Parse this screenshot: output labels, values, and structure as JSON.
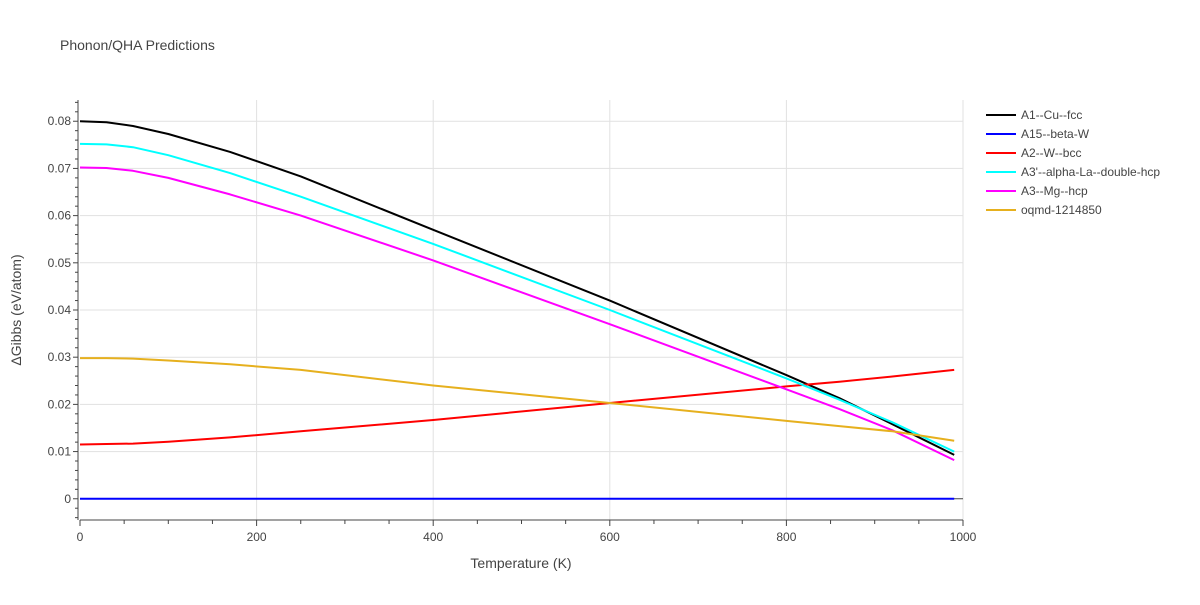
{
  "chart_data": {
    "type": "line",
    "title": "Phonon/QHA Predictions",
    "xlabel": "Temperature (K)",
    "ylabel": "ΔGibbs (eV/atom)",
    "xlim": [
      0,
      1000
    ],
    "ylim": [
      -0.0045,
      0.0845
    ],
    "x_ticks": [
      0,
      200,
      400,
      600,
      800,
      1000
    ],
    "x_tick_labels": [
      "0",
      "200",
      "400",
      "600",
      "800",
      "1000"
    ],
    "y_ticks": [
      0,
      0.01,
      0.02,
      0.03,
      0.04,
      0.05,
      0.06,
      0.07,
      0.08
    ],
    "y_tick_labels": [
      "0",
      "0.01",
      "0.02",
      "0.03",
      "0.04",
      "0.05",
      "0.06",
      "0.07",
      "0.08"
    ],
    "grid": true,
    "legend_position": "top-right",
    "x": [
      0,
      30,
      60,
      100,
      170,
      250,
      400,
      600,
      800,
      860,
      920,
      990
    ],
    "series": [
      {
        "name": "A1--Cu--fcc",
        "color": "#000000",
        "values": [
          0.08,
          0.0798,
          0.079,
          0.0773,
          0.0735,
          0.0683,
          0.057,
          0.042,
          0.0262,
          0.0213,
          0.0158,
          0.0093
        ]
      },
      {
        "name": "A15--beta-W",
        "color": "#0000ff",
        "values": [
          0,
          0,
          0,
          0,
          0,
          0,
          0,
          0,
          0,
          0,
          0,
          0
        ]
      },
      {
        "name": "A2--W--bcc",
        "color": "#ff0000",
        "values": [
          0.0115,
          0.0116,
          0.0117,
          0.0121,
          0.013,
          0.0143,
          0.0167,
          0.0203,
          0.0238,
          0.0248,
          0.0259,
          0.0273
        ]
      },
      {
        "name": "A3'--alpha-La--double-hcp",
        "color": "#00ffff",
        "values": [
          0.0752,
          0.0751,
          0.0745,
          0.0728,
          0.069,
          0.064,
          0.054,
          0.04,
          0.0255,
          0.021,
          0.0162,
          0.01
        ]
      },
      {
        "name": "A3--Mg--hcp",
        "color": "#ff00ff",
        "values": [
          0.0702,
          0.0701,
          0.0695,
          0.068,
          0.0645,
          0.06,
          0.0505,
          0.037,
          0.0232,
          0.019,
          0.0145,
          0.0082
        ]
      },
      {
        "name": "oqmd-1214850",
        "color": "#e6b01e",
        "values": [
          0.0298,
          0.0298,
          0.0297,
          0.0293,
          0.0285,
          0.0273,
          0.024,
          0.0203,
          0.0165,
          0.0154,
          0.0143,
          0.0123
        ]
      }
    ]
  }
}
